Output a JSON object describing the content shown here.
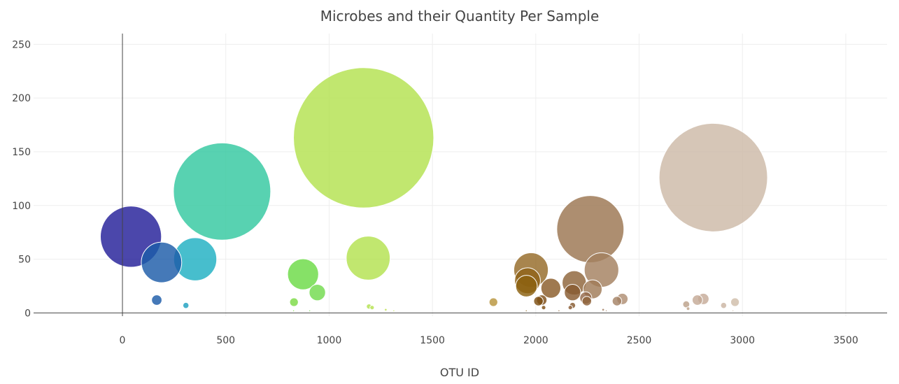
{
  "chart_data": {
    "type": "scatter",
    "title": "Microbes and their Quantity Per Sample",
    "xlabel": "OTU ID",
    "ylabel": "",
    "xlim": [
      -430,
      3700
    ],
    "ylim": [
      -3,
      260
    ],
    "x_ticks": [
      0,
      500,
      1000,
      1500,
      2000,
      2500,
      3000,
      3500
    ],
    "y_ticks": [
      0,
      50,
      100,
      150,
      200,
      250
    ],
    "grid": true,
    "legend": "none",
    "points": [
      {
        "x": 1167,
        "y": 163,
        "size": 163,
        "color": "#b3e24f"
      },
      {
        "x": 482,
        "y": 113,
        "size": 113,
        "color": "#33c8a0"
      },
      {
        "x": 2859,
        "y": 126,
        "size": 126,
        "color": "#cdb9a7"
      },
      {
        "x": 2264,
        "y": 78,
        "size": 78,
        "color": "#9b7551"
      },
      {
        "x": 41,
        "y": 71,
        "size": 71,
        "color": "#231f99"
      },
      {
        "x": 1189,
        "y": 51,
        "size": 51,
        "color": "#b3e24f"
      },
      {
        "x": 352,
        "y": 50,
        "size": 50,
        "color": "#1fb0c2"
      },
      {
        "x": 189,
        "y": 47,
        "size": 47,
        "color": "#1c5ba8"
      },
      {
        "x": 1977,
        "y": 40,
        "size": 40,
        "color": "#956a27"
      },
      {
        "x": 2318,
        "y": 40,
        "size": 40,
        "color": "#a4805f"
      },
      {
        "x": 874,
        "y": 36,
        "size": 36,
        "color": "#6bdb45"
      },
      {
        "x": 1960,
        "y": 30,
        "size": 30,
        "color": "#906318"
      },
      {
        "x": 2186,
        "y": 28,
        "size": 28,
        "color": "#8e6439"
      },
      {
        "x": 1955,
        "y": 25,
        "size": 25,
        "color": "#8b600f"
      },
      {
        "x": 2073,
        "y": 23,
        "size": 23,
        "color": "#8a5c28"
      },
      {
        "x": 2275,
        "y": 22,
        "size": 22,
        "color": "#a07b58"
      },
      {
        "x": 2178,
        "y": 19,
        "size": 19,
        "color": "#875a2f"
      },
      {
        "x": 943,
        "y": 19,
        "size": 19,
        "color": "#72db4d"
      },
      {
        "x": 2242,
        "y": 14,
        "size": 14,
        "color": "#94694a"
      },
      {
        "x": 2419,
        "y": 13,
        "size": 13,
        "color": "#ae8d73"
      },
      {
        "x": 2811,
        "y": 13,
        "size": 13,
        "color": "#c6ab98"
      },
      {
        "x": 2029,
        "y": 12,
        "size": 12,
        "color": "#7e4e18"
      },
      {
        "x": 166,
        "y": 12,
        "size": 12,
        "color": "#1c5ba8"
      },
      {
        "x": 2782,
        "y": 12,
        "size": 12,
        "color": "#c5aa96"
      },
      {
        "x": 2393,
        "y": 11,
        "size": 11,
        "color": "#a58265"
      },
      {
        "x": 2013,
        "y": 11,
        "size": 11,
        "color": "#7e4f12"
      },
      {
        "x": 2247,
        "y": 11,
        "size": 11,
        "color": "#8f633a"
      },
      {
        "x": 1795,
        "y": 10,
        "size": 10,
        "color": "#b8953d"
      },
      {
        "x": 830,
        "y": 10,
        "size": 10,
        "color": "#7cdb45"
      },
      {
        "x": 2964,
        "y": 10,
        "size": 10,
        "color": "#d0bdaa"
      },
      {
        "x": 2728,
        "y": 8,
        "size": 8,
        "color": "#bca18a"
      },
      {
        "x": 307,
        "y": 7,
        "size": 7,
        "color": "#1fa0c0"
      },
      {
        "x": 2909,
        "y": 7,
        "size": 7,
        "color": "#cbb5a2"
      },
      {
        "x": 2178,
        "y": 7,
        "size": 7,
        "color": "#865a30"
      },
      {
        "x": 1193,
        "y": 6,
        "size": 6,
        "color": "#b3e24f"
      },
      {
        "x": 1208,
        "y": 5,
        "size": 5,
        "color": "#b6e24f"
      },
      {
        "x": 2167,
        "y": 5,
        "size": 5,
        "color": "#8a5c34"
      },
      {
        "x": 2038,
        "y": 5,
        "size": 5,
        "color": "#7e4e14"
      },
      {
        "x": 1274,
        "y": 3,
        "size": 3,
        "color": "#bde24f"
      },
      {
        "x": 1313,
        "y": 2,
        "size": 2,
        "color": "#c0e24f"
      },
      {
        "x": 2737,
        "y": 4,
        "size": 4,
        "color": "#bda28a"
      },
      {
        "x": 2326,
        "y": 3,
        "size": 3,
        "color": "#a27e60"
      },
      {
        "x": 2341,
        "y": 2,
        "size": 2,
        "color": "#a88569"
      },
      {
        "x": 1954,
        "y": 2,
        "size": 2,
        "color": "#8b600f"
      },
      {
        "x": 828,
        "y": 2,
        "size": 2,
        "color": "#7cdb45"
      },
      {
        "x": 906,
        "y": 2,
        "size": 2,
        "color": "#72db4d"
      },
      {
        "x": 2112,
        "y": 2,
        "size": 2,
        "color": "#8a5c28"
      },
      {
        "x": 2954,
        "y": 2,
        "size": 2,
        "color": "#d0bdaa"
      }
    ]
  }
}
